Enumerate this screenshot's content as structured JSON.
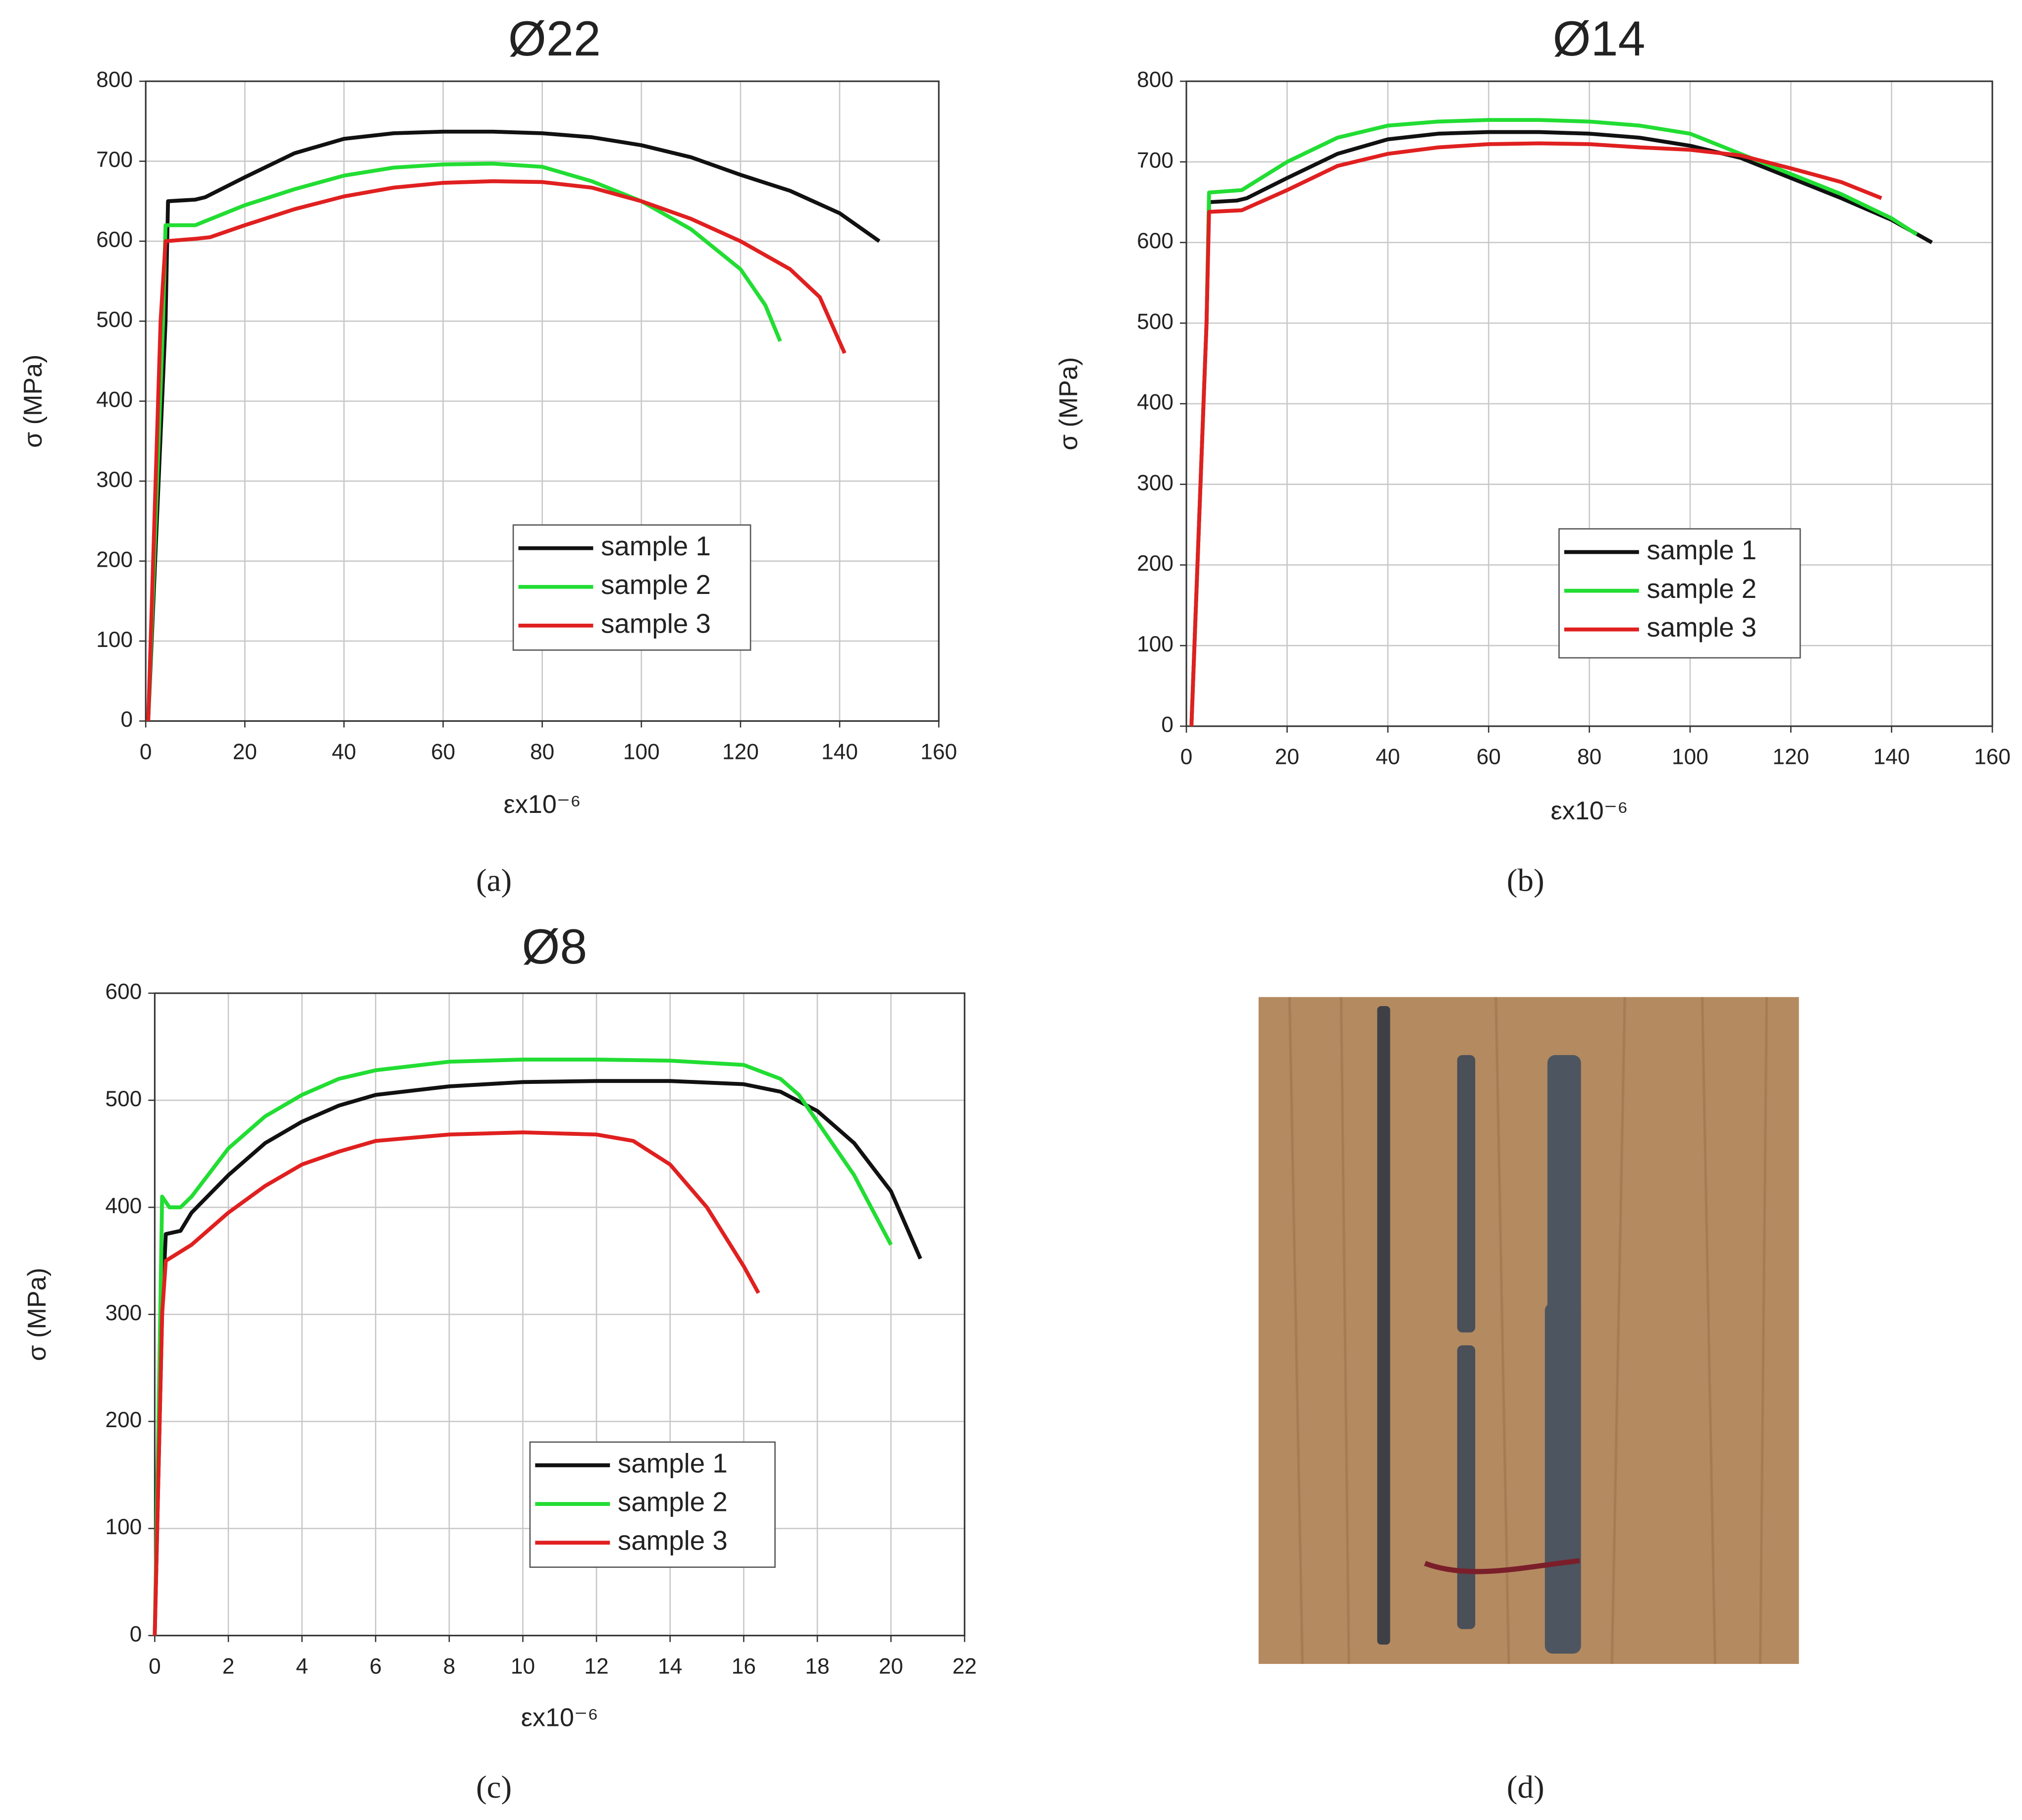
{
  "chart_data": [
    {
      "type": "line",
      "title": "Ø22",
      "xlabel": "εx10⁻⁶",
      "ylabel": "σ (MPa)",
      "caption": "(a)",
      "xlim": [
        0,
        160
      ],
      "ylim": [
        0,
        800
      ],
      "xticks": [
        0,
        20,
        40,
        60,
        80,
        100,
        120,
        140,
        160
      ],
      "yticks": [
        0,
        100,
        200,
        300,
        400,
        500,
        600,
        700,
        800
      ],
      "grid": true,
      "series": [
        {
          "name": "sample 1",
          "color": "#111111",
          "x": [
            0.5,
            4,
            4.5,
            10,
            12,
            20,
            30,
            40,
            50,
            60,
            70,
            80,
            90,
            100,
            110,
            120,
            130,
            140,
            148
          ],
          "values": [
            0,
            500,
            650,
            652,
            655,
            680,
            710,
            728,
            735,
            737,
            737,
            735,
            730,
            720,
            705,
            683,
            663,
            635,
            600
          ]
        },
        {
          "name": "sample 2",
          "color": "#22dd33",
          "x": [
            0.5,
            3.5,
            4,
            10,
            12,
            20,
            30,
            40,
            50,
            60,
            70,
            80,
            90,
            100,
            110,
            120,
            125,
            128
          ],
          "values": [
            0,
            500,
            620,
            620,
            625,
            645,
            665,
            682,
            692,
            696,
            697,
            693,
            675,
            650,
            615,
            565,
            520,
            475
          ]
        },
        {
          "name": "sample 3",
          "color": "#e02020",
          "x": [
            0.5,
            3,
            4,
            10,
            13,
            20,
            30,
            40,
            50,
            60,
            70,
            80,
            90,
            100,
            110,
            120,
            130,
            136,
            141
          ],
          "values": [
            0,
            500,
            600,
            603,
            605,
            620,
            640,
            656,
            667,
            673,
            675,
            674,
            667,
            650,
            628,
            600,
            565,
            530,
            460
          ]
        }
      ]
    },
    {
      "type": "line",
      "title": "Ø14",
      "xlabel": "εx10⁻⁶",
      "ylabel": "σ (MPa)",
      "caption": "(b)",
      "xlim": [
        0,
        160
      ],
      "ylim": [
        0,
        800
      ],
      "xticks": [
        0,
        20,
        40,
        60,
        80,
        100,
        120,
        140,
        160
      ],
      "yticks": [
        0,
        100,
        200,
        300,
        400,
        500,
        600,
        700,
        800
      ],
      "grid": true,
      "series": [
        {
          "name": "sample 1",
          "color": "#111111",
          "x": [
            1,
            4,
            4.5,
            10,
            12,
            20,
            30,
            40,
            50,
            60,
            70,
            80,
            90,
            100,
            110,
            120,
            130,
            140,
            148
          ],
          "values": [
            0,
            500,
            650,
            652,
            655,
            680,
            710,
            728,
            735,
            737,
            737,
            735,
            730,
            720,
            705,
            680,
            655,
            628,
            600
          ]
        },
        {
          "name": "sample 2",
          "color": "#22dd33",
          "x": [
            1,
            4,
            4.5,
            11,
            20,
            30,
            40,
            50,
            60,
            70,
            80,
            90,
            100,
            110,
            120,
            130,
            140,
            145
          ],
          "values": [
            0,
            500,
            662,
            665,
            700,
            730,
            745,
            750,
            752,
            752,
            750,
            745,
            735,
            710,
            685,
            660,
            630,
            610
          ]
        },
        {
          "name": "sample 3",
          "color": "#e02020",
          "x": [
            1,
            4,
            4.5,
            11,
            20,
            30,
            40,
            50,
            60,
            70,
            80,
            90,
            100,
            110,
            120,
            130,
            138
          ],
          "values": [
            0,
            500,
            638,
            640,
            665,
            695,
            710,
            718,
            722,
            723,
            722,
            718,
            715,
            708,
            692,
            675,
            655
          ]
        }
      ]
    },
    {
      "type": "line",
      "title": "Ø8",
      "xlabel": "εx10⁻⁶",
      "ylabel": "σ (MPa)",
      "caption": "(c)",
      "xlim": [
        0,
        22
      ],
      "ylim": [
        0,
        600
      ],
      "xticks": [
        0,
        2,
        4,
        6,
        8,
        10,
        12,
        14,
        16,
        18,
        20,
        22
      ],
      "yticks": [
        0,
        100,
        200,
        300,
        400,
        500,
        600
      ],
      "grid": true,
      "series": [
        {
          "name": "sample 1",
          "color": "#111111",
          "x": [
            0,
            0.2,
            0.3,
            0.7,
            1,
            2,
            3,
            4,
            5,
            6,
            8,
            10,
            12,
            14,
            16,
            17,
            18,
            19,
            20,
            20.8
          ],
          "values": [
            0,
            300,
            375,
            378,
            395,
            430,
            460,
            480,
            495,
            505,
            513,
            517,
            518,
            518,
            515,
            508,
            490,
            460,
            415,
            352
          ]
        },
        {
          "name": "sample 2",
          "color": "#22dd33",
          "x": [
            0,
            0.15,
            0.2,
            0.4,
            0.7,
            1,
            2,
            3,
            4,
            5,
            6,
            8,
            10,
            12,
            14,
            16,
            17,
            17.5,
            18,
            19,
            20
          ],
          "values": [
            0,
            300,
            410,
            400,
            400,
            410,
            455,
            485,
            505,
            520,
            528,
            536,
            538,
            538,
            537,
            533,
            520,
            505,
            480,
            430,
            365
          ]
        },
        {
          "name": "sample 3",
          "color": "#e02020",
          "x": [
            0,
            0.2,
            0.3,
            1,
            2,
            3,
            4,
            5,
            6,
            8,
            10,
            12,
            13,
            14,
            15,
            16,
            16.4
          ],
          "values": [
            0,
            300,
            350,
            365,
            395,
            420,
            440,
            452,
            462,
            468,
            470,
            468,
            462,
            440,
            400,
            345,
            320
          ]
        }
      ]
    }
  ],
  "photo": {
    "caption": "(d)"
  }
}
